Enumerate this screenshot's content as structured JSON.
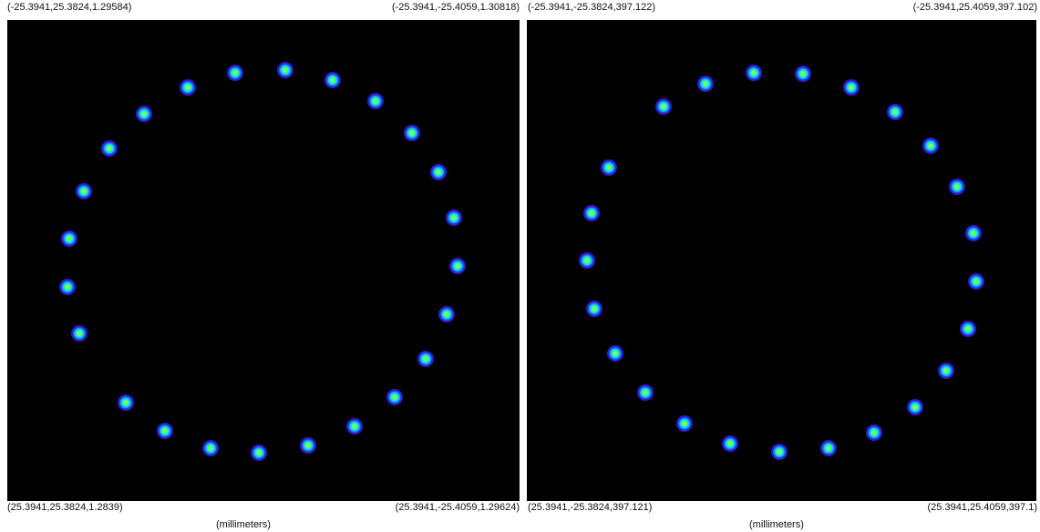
{
  "panels": [
    {
      "corners": {
        "top_left": "(-25.3941,25.3824,1.29584)",
        "top_right": "(-25.3941,-25.4059,1.30818)",
        "bottom_left": "(25.3941,25.3824,1.2839)",
        "bottom_right": "(25.3941,-25.4059,1.29624)"
      },
      "unit_label": "(millimeters)"
    },
    {
      "corners": {
        "top_left": "(-25.3941,-25.3824,397.122)",
        "top_right": "(-25.3941,25.4059,397.102)",
        "bottom_left": "(25.3941,-25.3824,397.121)",
        "bottom_right": "(25.3941,25.4059,397.1)"
      },
      "unit_label": "(millimeters)"
    }
  ]
}
